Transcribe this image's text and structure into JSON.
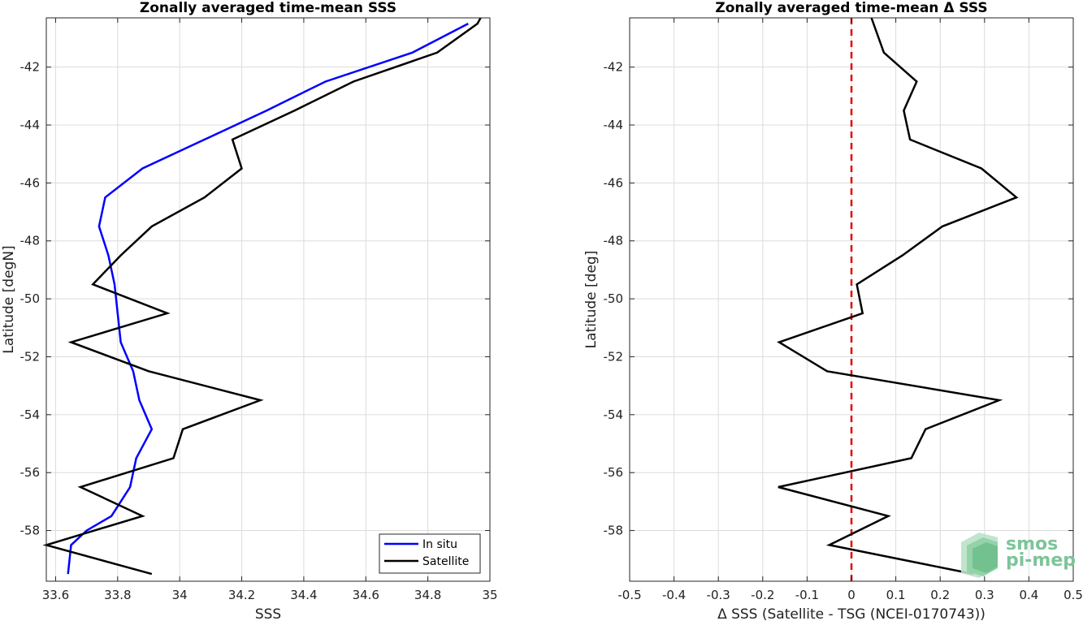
{
  "logo": {
    "line1": "smos",
    "line2": "pi-mep"
  },
  "chart_data": [
    {
      "type": "line",
      "title": "Zonally averaged time-mean SSS",
      "xlabel": "SSS",
      "ylabel": "Latitude [degN]",
      "xlim": [
        33.57,
        35.0
      ],
      "ylim": [
        -59.75,
        -40.3
      ],
      "xticks": [
        33.6,
        33.8,
        34,
        34.2,
        34.4,
        34.6,
        34.8,
        35
      ],
      "xtick_labels": [
        "33.6",
        "33.8",
        "34",
        "34.2",
        "34.4",
        "34.6",
        "34.8",
        "35"
      ],
      "yticks": [
        -42,
        -44,
        -46,
        -48,
        -50,
        -52,
        -54,
        -56,
        -58
      ],
      "ytick_labels": [
        "-42",
        "-44",
        "-46",
        "-48",
        "-50",
        "-52",
        "-54",
        "-56",
        "-58"
      ],
      "grid": true,
      "legend_position": "bottom-right",
      "series": [
        {
          "name": "In situ",
          "color": "#0000ff",
          "x": [
            34.93,
            34.75,
            34.47,
            34.28,
            34.08,
            33.88,
            33.76,
            33.74,
            33.77,
            33.79,
            33.8,
            33.81,
            33.85,
            33.87,
            33.91,
            33.86,
            33.84,
            33.78,
            33.7,
            33.65,
            33.64
          ],
          "y": [
            -40.5,
            -41.5,
            -42.5,
            -43.5,
            -44.5,
            -45.5,
            -46.5,
            -47.5,
            -48.5,
            -49.5,
            -50.5,
            -51.5,
            -52.5,
            -53.5,
            -54.5,
            -55.5,
            -56.5,
            -57.5,
            -58.0,
            -58.5,
            -59.5
          ]
        },
        {
          "name": "Satellite",
          "color": "#000000",
          "x": [
            34.97,
            34.96,
            34.83,
            34.56,
            34.37,
            34.17,
            34.2,
            34.08,
            33.91,
            33.81,
            33.72,
            33.96,
            33.65,
            33.9,
            34.26,
            34.01,
            33.98,
            33.68,
            33.88,
            33.57,
            33.91
          ],
          "y": [
            -40.0,
            -40.5,
            -41.5,
            -42.5,
            -43.5,
            -44.5,
            -45.5,
            -46.5,
            -47.5,
            -48.5,
            -49.5,
            -50.5,
            -51.5,
            -52.5,
            -53.5,
            -54.5,
            -55.5,
            -56.5,
            -57.5,
            -58.5,
            -59.5
          ]
        }
      ]
    },
    {
      "type": "line",
      "title": "Zonally averaged time-mean Δ SSS",
      "xlabel": "Δ SSS (Satellite - TSG (NCEI-0170743))",
      "ylabel": "Latitude [deg]",
      "xlim": [
        -0.5,
        0.5
      ],
      "ylim": [
        -59.75,
        -40.3
      ],
      "xticks": [
        -0.5,
        -0.4,
        -0.3,
        -0.2,
        -0.1,
        0,
        0.1,
        0.2,
        0.3,
        0.4,
        0.5
      ],
      "xtick_labels": [
        "-0.5",
        "-0.4",
        "-0.3",
        "-0.2",
        "-0.1",
        "0",
        "0.1",
        "0.2",
        "0.3",
        "0.4",
        "0.5"
      ],
      "yticks": [
        -42,
        -44,
        -46,
        -48,
        -50,
        -52,
        -54,
        -56,
        -58
      ],
      "ytick_labels": [
        "-42",
        "-44",
        "-46",
        "-48",
        "-50",
        "-52",
        "-54",
        "-56",
        "-58"
      ],
      "grid": true,
      "reference_line": {
        "x": 0,
        "color": "#e00000",
        "style": "dashed"
      },
      "series": [
        {
          "color": "#000000",
          "x": [
            0.045,
            0.073,
            0.147,
            0.118,
            0.132,
            0.293,
            0.372,
            0.205,
            0.115,
            0.012,
            0.025,
            -0.163,
            -0.055,
            0.333,
            0.167,
            0.135,
            -0.165,
            0.083,
            -0.05,
            0.275
          ],
          "y": [
            -40.2,
            -41.5,
            -42.5,
            -43.5,
            -44.5,
            -45.5,
            -46.5,
            -47.5,
            -48.5,
            -49.5,
            -50.5,
            -51.5,
            -52.5,
            -53.5,
            -54.5,
            -55.5,
            -56.5,
            -57.5,
            -58.5,
            -59.5
          ]
        }
      ]
    }
  ]
}
